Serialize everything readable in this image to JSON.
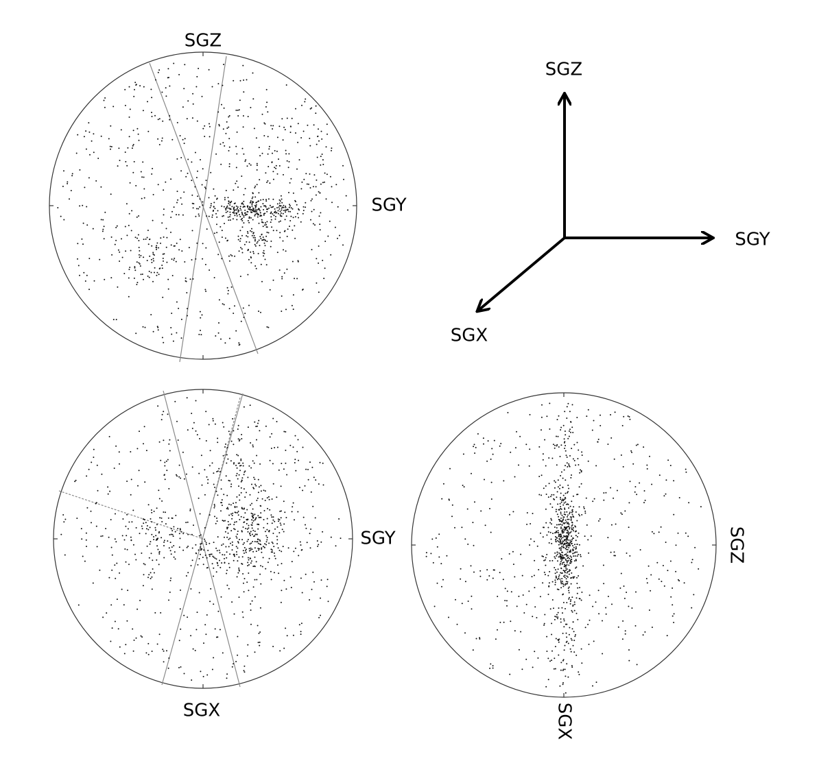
{
  "panels": [
    {
      "top_label": "SGZ",
      "right_label": "SGY"
    },
    {
      "right_label": "SGY",
      "bottom_label": "SGX"
    },
    {
      "right_label": "SGZ",
      "bottom_label": "SGX"
    }
  ],
  "axes": {
    "up_label": "SGZ",
    "right_label": "SGY",
    "down_left_label": "SGX"
  }
}
